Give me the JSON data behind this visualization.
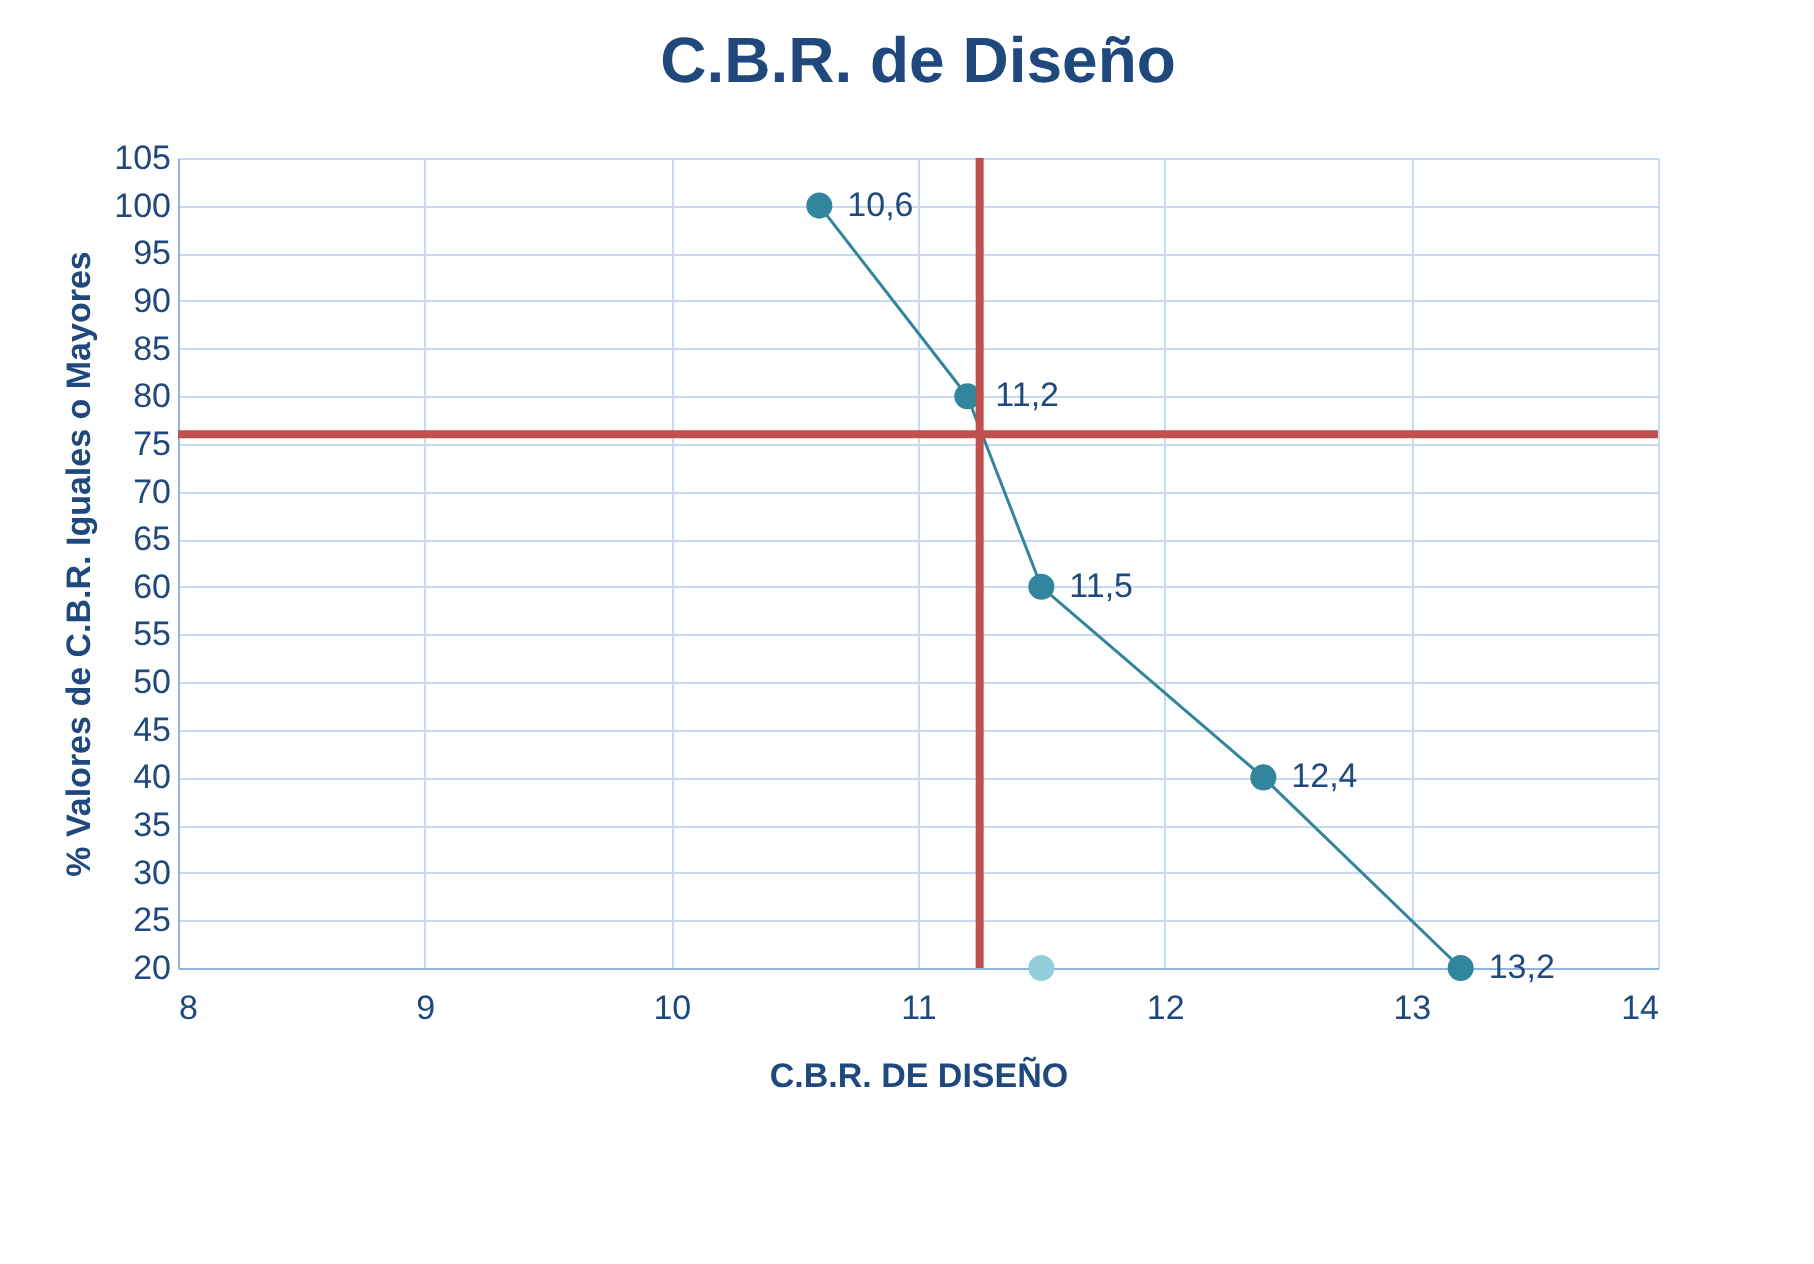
{
  "chart_data": {
    "type": "line",
    "title": "C.B.R. de Diseño",
    "xlabel": "C.B.R. DE DISEÑO",
    "ylabel": "% Valores de C.B.R. Iguales o Mayores",
    "xlim": [
      8,
      14
    ],
    "xticks": [
      8,
      9,
      10,
      11,
      12,
      13,
      14
    ],
    "ylim": [
      20,
      105
    ],
    "yticks": [
      20,
      25,
      30,
      35,
      40,
      45,
      50,
      55,
      60,
      65,
      70,
      75,
      80,
      85,
      90,
      95,
      100,
      105
    ],
    "grid": true,
    "marker": "circle",
    "series": [
      {
        "type": "line",
        "color": "#31859c",
        "x": [
          10.6,
          11.2,
          11.5,
          12.4,
          13.2
        ],
        "values": [
          100,
          80,
          60,
          40,
          20
        ]
      },
      {
        "type": "scatter",
        "color": "#92cddc",
        "x": [
          11.5
        ],
        "values": [
          20
        ]
      }
    ],
    "annotations": [
      {
        "text": "10,6",
        "x": 10.6,
        "y": 100
      },
      {
        "text": "11,2",
        "x": 11.2,
        "y": 80
      },
      {
        "text": "11,5",
        "x": 11.5,
        "y": 60
      },
      {
        "text": "12,4",
        "x": 12.4,
        "y": 40
      },
      {
        "text": "13,2",
        "x": 13.2,
        "y": 20
      }
    ],
    "ref_lines": [
      {
        "axis": "y",
        "value": 76,
        "color": "#c0504d"
      },
      {
        "axis": "x",
        "value": 11.25,
        "color": "#c0504d"
      }
    ]
  }
}
